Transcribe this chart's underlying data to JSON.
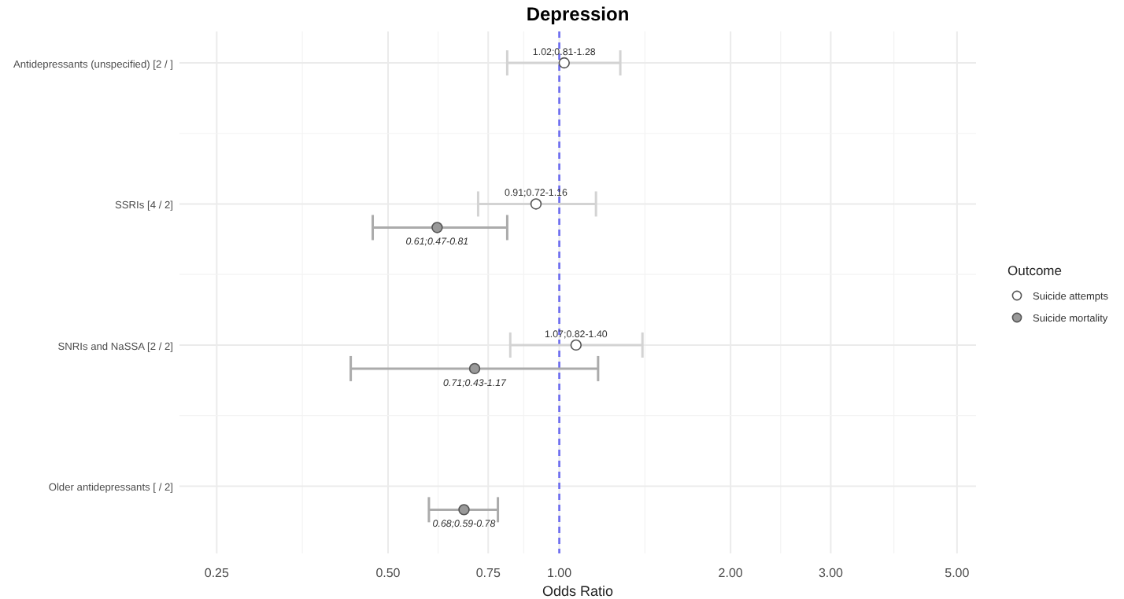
{
  "chart_data": {
    "type": "scatter",
    "orientation": "horizontal",
    "title": "Depression",
    "xlabel": "Odds Ratio",
    "legend_title": "Outcome",
    "log": "x",
    "grid": true,
    "legend": "right",
    "marker": "circle",
    "categories": [
      "Antidepressants (unspecified) [2 / ]",
      "SSRIs [4 / 2]",
      "SNRIs and NaSSA [2 / 2]",
      "Older antidepressants [ / 2]"
    ],
    "xlim": [
      0.215,
      5.4
    ],
    "xticks": [
      {
        "value": 0.25,
        "label": "0.25"
      },
      {
        "value": 0.5,
        "label": "0.50"
      },
      {
        "value": 0.75,
        "label": "0.75"
      },
      {
        "value": 1,
        "label": "1.00"
      },
      {
        "value": 2,
        "label": "2.00"
      },
      {
        "value": 3,
        "label": "3.00"
      },
      {
        "value": 5,
        "label": "5.00"
      }
    ],
    "series": [
      {
        "name": "Suicide attempts",
        "color": "#ffffff",
        "values": [
          1.02,
          0.91,
          1.07,
          null
        ],
        "errors": [
          [
            0.81,
            1.28
          ],
          [
            0.72,
            1.16
          ],
          [
            0.82,
            1.4
          ],
          null
        ],
        "value_labels": [
          "1.02;0.81-1.28",
          "0.91;0.72-1.16",
          "1.07;0.82-1.40",
          null
        ]
      },
      {
        "name": "Suicide mortality",
        "color": "#999999",
        "values": [
          null,
          0.61,
          0.71,
          0.68
        ],
        "errors": [
          null,
          [
            0.47,
            0.81
          ],
          [
            0.43,
            1.17
          ],
          [
            0.59,
            0.78
          ]
        ],
        "value_labels": [
          null,
          "0.61;0.47-0.81",
          "0.71;0.43-1.17",
          "0.68;0.59-0.78"
        ]
      }
    ],
    "ref_lines": [
      {
        "axis": "x",
        "value": 1,
        "color": "#6a6af0",
        "line_style": "dashed"
      }
    ]
  }
}
